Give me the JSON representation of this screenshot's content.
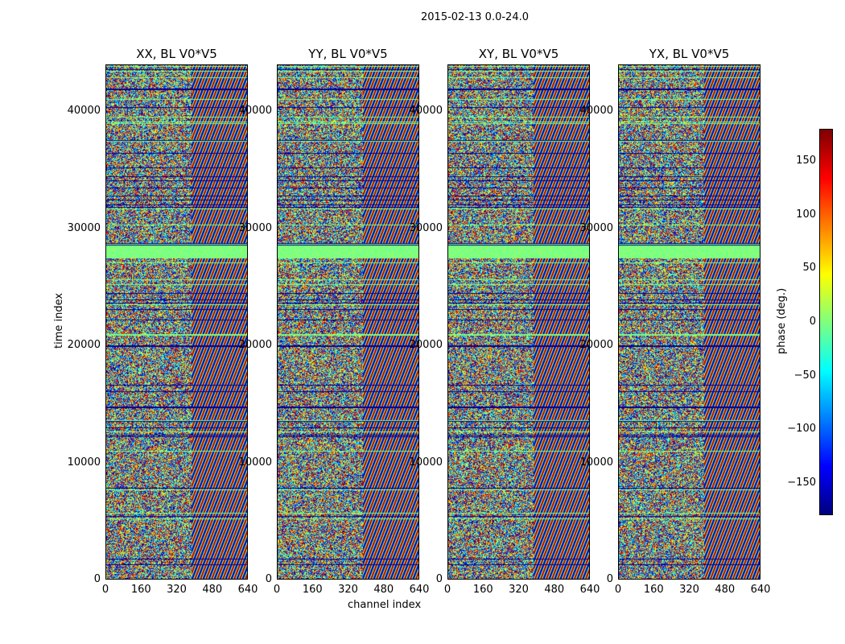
{
  "figure": {
    "title": "2015-02-13 0.0-24.0"
  },
  "chart_data": {
    "type": "heatmap",
    "title": "2015-02-13 0.0-24.0",
    "xlabel": "channel index",
    "ylabel": "time index",
    "xlim": [
      0,
      640
    ],
    "ylim": [
      0,
      44000
    ],
    "x_ticks": [
      "0",
      "160",
      "320",
      "480",
      "640"
    ],
    "y_ticks": [
      "0",
      "10000",
      "20000",
      "30000",
      "40000"
    ],
    "panels": [
      {
        "title": "XX, BL V0*V5"
      },
      {
        "title": "YY, BL V0*V5"
      },
      {
        "title": "XY, BL V0*V5"
      },
      {
        "title": "YX, BL V0*V5"
      }
    ],
    "colorbar": {
      "label": "phase (deg.)",
      "range": [
        -180,
        180
      ],
      "ticks": [
        "150",
        "100",
        "50",
        "0",
        "−50",
        "−100",
        "−150"
      ],
      "colormap": "jet"
    }
  }
}
